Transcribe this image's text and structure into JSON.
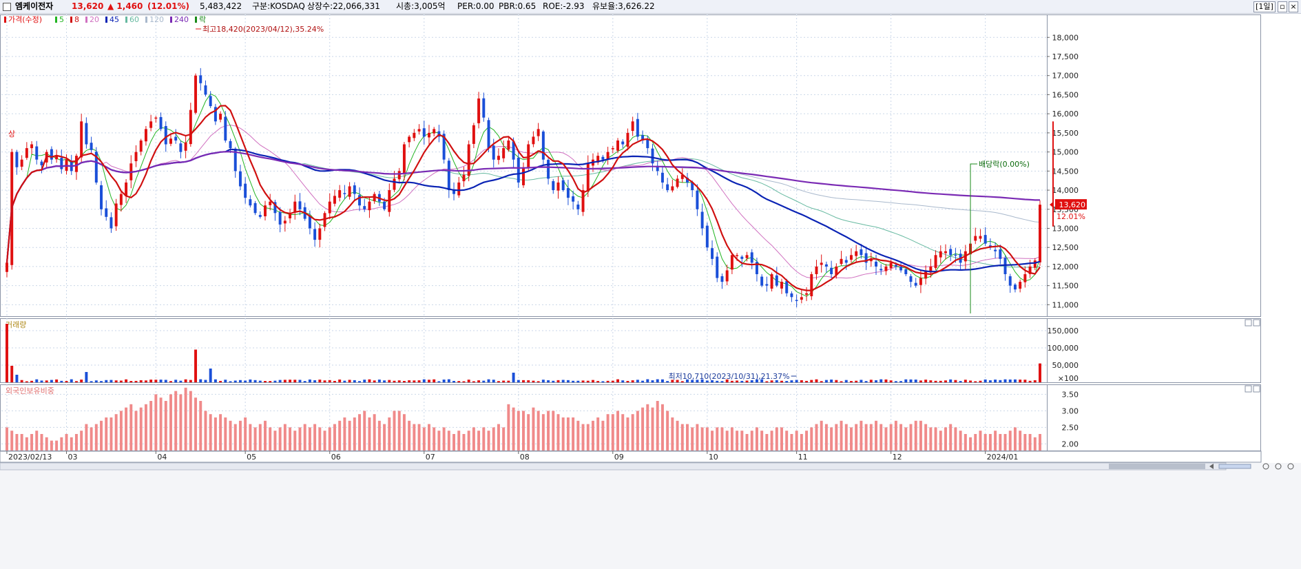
{
  "header": {
    "stock_name": "엠케이전자",
    "price": "13,620",
    "change": "▲ 1,460",
    "change_pct": "(12.01%)",
    "volume": "5,483,422",
    "market": "구분:KOSDAQ",
    "shares": "상장수:22,066,331",
    "market_cap": "시총:3,005억",
    "per": "PER:0.00",
    "pbr": "PBR:0.65",
    "roe": "ROE:-2.93",
    "reserve": "유보율:3,626.22",
    "period_button": "[1일]"
  },
  "colors": {
    "up": "#e01010",
    "down": "#1a4fd8",
    "ma5": "#22b422",
    "ma8": "#d01010",
    "ma20": "#d070c0",
    "ma45": "#0a23b4",
    "ma60": "#66b9a0",
    "ma120": "#a8b8cc",
    "ma240": "#7a2ab4",
    "volume_up": "#e01010",
    "volume_down": "#1a4fd8",
    "foreign_bar": "#f08a8a"
  },
  "legend": {
    "price_label": "가격(수정)",
    "items": [
      {
        "label": "5",
        "color": "#22b422"
      },
      {
        "label": "8",
        "color": "#d01010"
      },
      {
        "label": "20",
        "color": "#d070c0"
      },
      {
        "label": "45",
        "color": "#0a23b4"
      },
      {
        "label": "60",
        "color": "#66b9a0"
      },
      {
        "label": "120",
        "color": "#a8b8cc"
      },
      {
        "label": "240",
        "color": "#7a2ab4"
      }
    ],
    "ex_label": "락"
  },
  "chart_data": [
    {
      "type": "candlestick",
      "title": "가격(수정)",
      "ylim": [
        10700,
        18600
      ],
      "y_ticks": [
        "11,000",
        "11,500",
        "12,000",
        "12,500",
        "13,000",
        "13,500",
        "14,000",
        "14,500",
        "15,000",
        "15,500",
        "16,000",
        "16,500",
        "17,000",
        "17,500",
        "18,000"
      ],
      "x_ticks": [
        "2023/02/13",
        "03",
        "04",
        "05",
        "06",
        "07",
        "08",
        "09",
        "10",
        "11",
        "12",
        "2024/01"
      ],
      "x_tick_index": [
        0,
        12,
        30,
        48,
        65,
        84,
        103,
        122,
        141,
        159,
        178,
        197
      ],
      "closes": [
        12100,
        15000,
        14600,
        14800,
        15100,
        15200,
        14800,
        14650,
        15000,
        14800,
        14900,
        14550,
        14800,
        14500,
        14900,
        15800,
        15200,
        15050,
        14200,
        13500,
        13300,
        13000,
        13650,
        13900,
        14200,
        14700,
        15000,
        15300,
        15600,
        15800,
        15900,
        15600,
        15200,
        15350,
        15300,
        15000,
        15250,
        16100,
        17000,
        16800,
        16500,
        16200,
        15800,
        16000,
        15300,
        15100,
        14500,
        14100,
        13800,
        13600,
        13400,
        13300,
        13600,
        13700,
        13400,
        13100,
        13200,
        13400,
        13700,
        13500,
        13250,
        13000,
        12700,
        13000,
        13400,
        13700,
        13850,
        14000,
        13900,
        14100,
        13900,
        13600,
        13500,
        13700,
        13900,
        13700,
        13500,
        14000,
        14300,
        14500,
        15200,
        15400,
        15500,
        15600,
        15400,
        15500,
        15600,
        15400,
        14800,
        14000,
        13900,
        14200,
        14400,
        15200,
        15700,
        16400,
        15900,
        15100,
        14800,
        14900,
        15100,
        15300,
        14800,
        14200,
        14600,
        15200,
        15400,
        15600,
        14800,
        14300,
        14000,
        14200,
        14000,
        13800,
        13700,
        13500,
        14000,
        14700,
        14800,
        14900,
        14800,
        15000,
        15100,
        15300,
        15200,
        15500,
        15800,
        15400,
        15300,
        15100,
        14700,
        14500,
        14200,
        14000,
        14100,
        14300,
        14400,
        14200,
        14000,
        13500,
        13000,
        12500,
        12200,
        11700,
        11600,
        11900,
        12300,
        12300,
        12200,
        12300,
        12100,
        11800,
        11500,
        11500,
        11800,
        11500,
        11600,
        11300,
        11200,
        11100,
        11200,
        11300,
        11800,
        12000,
        12100,
        12000,
        11800,
        12000,
        12200,
        12100,
        12300,
        12400,
        12300,
        12100,
        12200,
        12000,
        11900,
        12000,
        12100,
        12000,
        11900,
        11800,
        11600,
        11500,
        11700,
        11900,
        12000,
        12300,
        12400,
        12400,
        12300,
        12300,
        12100,
        12400,
        12600,
        12800,
        12800,
        12600,
        12500,
        12400,
        12200,
        11800,
        11500,
        11400,
        11600,
        11800,
        12000,
        12160,
        13620
      ],
      "annotations": {
        "high": "최고18,420(2023/04/12),35.24%",
        "low": "최저10,710(2023/10/31),21.37%",
        "ex_dividend": "배당락(0.00%)",
        "upper_limit_mark": "상",
        "last_price_tag": "13,620",
        "last_pct_tag": "12.01%"
      }
    },
    {
      "type": "bar",
      "title": "거래량",
      "y_ticks": [
        "150,000",
        "100,000",
        "50,000",
        "×100"
      ],
      "ylim": [
        0,
        170000
      ]
    },
    {
      "type": "bar",
      "title": "외국인보유비중",
      "y_ticks": [
        "3.50",
        "3.00",
        "2.50",
        "2.00"
      ],
      "ylim": [
        1.8,
        3.8
      ],
      "values": [
        2.5,
        2.4,
        2.3,
        2.3,
        2.2,
        2.3,
        2.4,
        2.3,
        2.2,
        2.1,
        2.1,
        2.2,
        2.3,
        2.2,
        2.3,
        2.4,
        2.6,
        2.5,
        2.6,
        2.7,
        2.8,
        2.8,
        2.9,
        3.0,
        3.1,
        3.2,
        3.0,
        3.1,
        3.2,
        3.3,
        3.5,
        3.4,
        3.3,
        3.5,
        3.6,
        3.5,
        3.7,
        3.6,
        3.4,
        3.3,
        3.0,
        2.9,
        2.8,
        2.9,
        2.8,
        2.7,
        2.6,
        2.7,
        2.8,
        2.6,
        2.5,
        2.6,
        2.7,
        2.5,
        2.4,
        2.5,
        2.6,
        2.5,
        2.4,
        2.5,
        2.6,
        2.5,
        2.6,
        2.5,
        2.4,
        2.5,
        2.6,
        2.7,
        2.8,
        2.7,
        2.8,
        2.9,
        3.0,
        2.8,
        2.9,
        2.7,
        2.6,
        2.8,
        3.0,
        3.0,
        2.9,
        2.7,
        2.6,
        2.6,
        2.5,
        2.6,
        2.5,
        2.4,
        2.5,
        2.4,
        2.3,
        2.4,
        2.3,
        2.4,
        2.5,
        2.4,
        2.5,
        2.4,
        2.5,
        2.6,
        2.5,
        3.2,
        3.1,
        3.0,
        3.0,
        2.9,
        3.1,
        3.0,
        2.9,
        3.0,
        3.0,
        2.9,
        2.8,
        2.8,
        2.8,
        2.7,
        2.6,
        2.6,
        2.7,
        2.8,
        2.7,
        2.9,
        2.9,
        3.0,
        2.9,
        2.8,
        2.9,
        3.0,
        3.1,
        3.2,
        3.1,
        3.3,
        3.2,
        3.0,
        2.8,
        2.7,
        2.6,
        2.6,
        2.5,
        2.6,
        2.5,
        2.5,
        2.4,
        2.5,
        2.5,
        2.4,
        2.5,
        2.4,
        2.4,
        2.3,
        2.4,
        2.5,
        2.4,
        2.3,
        2.4,
        2.5,
        2.5,
        2.4,
        2.3,
        2.4,
        2.3,
        2.4,
        2.5,
        2.6,
        2.7,
        2.6,
        2.5,
        2.6,
        2.7,
        2.6,
        2.5,
        2.6,
        2.7,
        2.6,
        2.6,
        2.7,
        2.6,
        2.5,
        2.6,
        2.7,
        2.6,
        2.5,
        2.6,
        2.7,
        2.7,
        2.6,
        2.5,
        2.5,
        2.4,
        2.5,
        2.6,
        2.5,
        2.4,
        2.3,
        2.2,
        2.3,
        2.4,
        2.3,
        2.3,
        2.4,
        2.3,
        2.3,
        2.4,
        2.5,
        2.4,
        2.3,
        2.3,
        2.2,
        2.3,
        2.2,
        2.3,
        2.2,
        2.3,
        2.5,
        2.5,
        2.5,
        2.5
      ]
    }
  ]
}
